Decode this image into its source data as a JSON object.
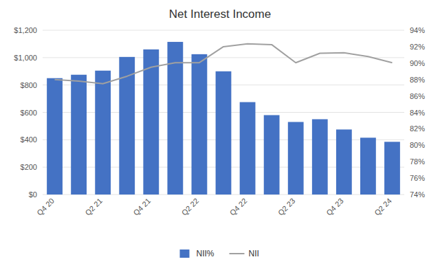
{
  "chart_data": {
    "type": "bar",
    "title": "Net Interest Income",
    "categories": [
      "Q4 20",
      null,
      "Q2 21",
      null,
      "Q4 21",
      null,
      "Q2 22",
      null,
      "Q4 22",
      null,
      "Q2 23",
      null,
      "Q4 23",
      null,
      "Q2 24"
    ],
    "series": [
      {
        "name": "NII%",
        "type": "bar",
        "color": "#4472C4",
        "values": [
          850,
          875,
          905,
          1005,
          1060,
          1115,
          1025,
          900,
          675,
          580,
          530,
          550,
          475,
          415,
          385
        ]
      },
      {
        "name": "NII",
        "type": "line",
        "axis": "y2",
        "color": "#A0A0A0",
        "values": [
          0.88,
          0.878,
          0.875,
          0.884,
          0.895,
          0.9005,
          0.9005,
          0.92,
          0.9235,
          0.9225,
          0.9005,
          0.912,
          0.9125,
          0.908,
          0.9005
        ]
      }
    ],
    "ylim": [
      0,
      1200
    ],
    "yticks": [
      {
        "value": 0,
        "label": "$0"
      },
      {
        "value": 200,
        "label": "$200"
      },
      {
        "value": 400,
        "label": "$400"
      },
      {
        "value": 600,
        "label": "$600"
      },
      {
        "value": 800,
        "label": "$800"
      },
      {
        "value": 1000,
        "label": "$1,000"
      },
      {
        "value": 1200,
        "label": "$1,200"
      }
    ],
    "y2lim": [
      0.74,
      0.94
    ],
    "y2ticks": [
      {
        "value": 0.74,
        "label": "74%"
      },
      {
        "value": 0.76,
        "label": "76%"
      },
      {
        "value": 0.78,
        "label": "78%"
      },
      {
        "value": 0.8,
        "label": "80%"
      },
      {
        "value": 0.82,
        "label": "82%"
      },
      {
        "value": 0.84,
        "label": "84%"
      },
      {
        "value": 0.86,
        "label": "86%"
      },
      {
        "value": 0.88,
        "label": "88%"
      },
      {
        "value": 0.9,
        "label": "90%"
      },
      {
        "value": 0.92,
        "label": "92%"
      },
      {
        "value": 0.94,
        "label": "94%"
      }
    ],
    "grid": true,
    "legend": "bottom"
  }
}
